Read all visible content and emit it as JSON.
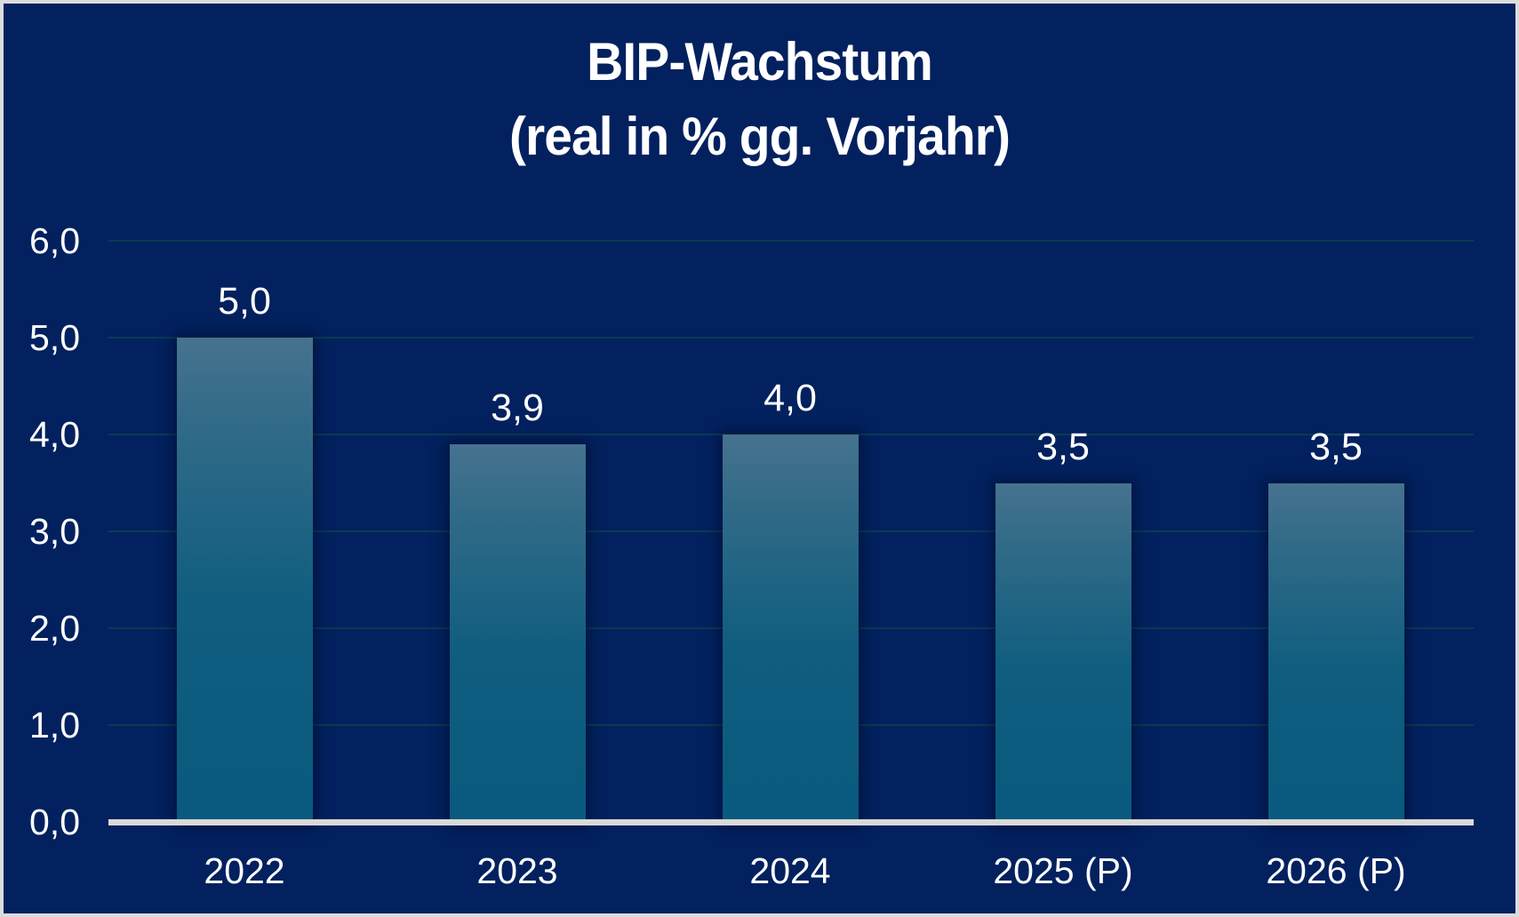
{
  "title": {
    "line1": "BIP-Wachstum",
    "line2": "(real in % gg. Vorjahr)"
  },
  "chart_data": {
    "type": "bar",
    "title": "BIP-Wachstum (real in % gg. Vorjahr)",
    "categories": [
      "2022",
      "2023",
      "2024",
      "2025 (P)",
      "2026 (P)"
    ],
    "values": [
      5.0,
      3.9,
      4.0,
      3.5,
      3.5
    ],
    "value_labels": [
      "5,0",
      "3,9",
      "4,0",
      "3,5",
      "3,5"
    ],
    "xlabel": "",
    "ylabel": "",
    "ylim": [
      0,
      6
    ],
    "y_ticks": [
      0,
      1,
      2,
      3,
      4,
      5,
      6
    ],
    "y_tick_labels": [
      "0,0",
      "1,0",
      "2,0",
      "3,0",
      "4,0",
      "5,0",
      "6,0"
    ],
    "grid": true,
    "legend": false,
    "number_format": "de-DE decimal comma"
  },
  "colors": {
    "background": "#02215E",
    "frame_border": "#DCDCDC",
    "bar_gradient_top": "#46728F",
    "bar_gradient_mid": "#105D7F",
    "bar_gradient_bottom": "#095A7F",
    "axis_line": "#D9D9D9",
    "gridline": "#0B3A50",
    "text": "#FFFFFF"
  }
}
